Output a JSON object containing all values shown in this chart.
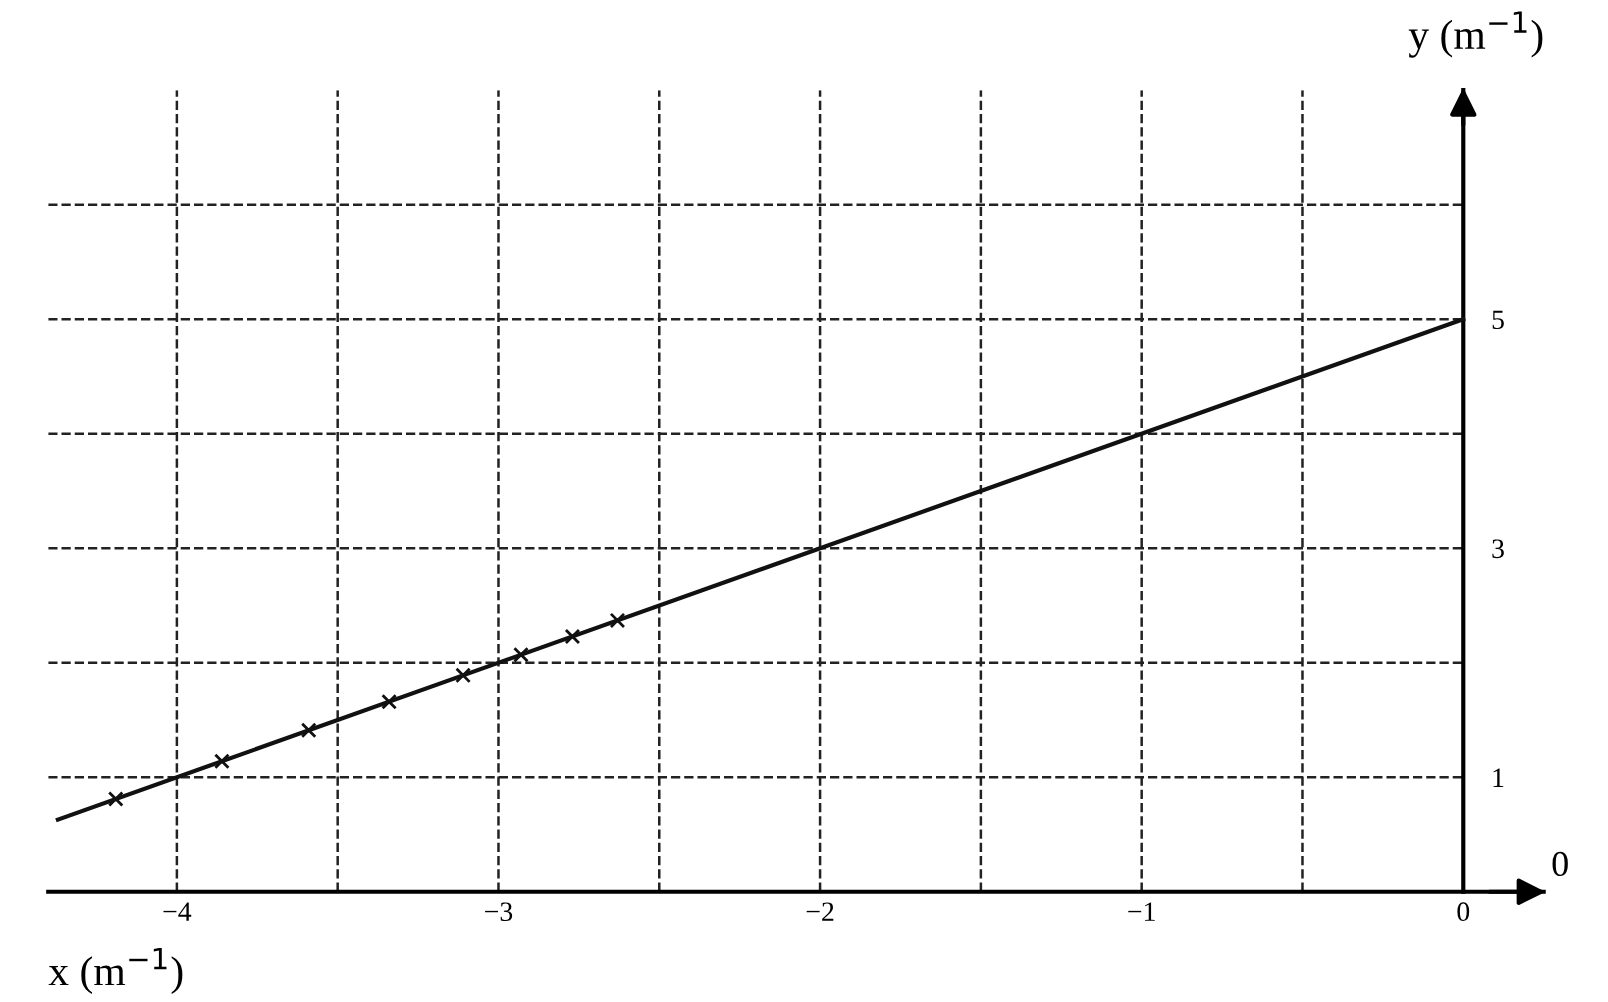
{
  "chart_data": {
    "type": "line",
    "xlabel": "x (m$^{−1}$)",
    "ylabel": "y (m$^{−1}$)",
    "series": [
      {
        "color": "#111111",
        "x": [
          -4.37,
          0
        ],
        "values": [
          0.63,
          5
        ],
        "marker": "none"
      },
      {
        "type": "scatter",
        "color": "#111111",
        "x": [
          -4.19,
          -3.86,
          -3.59,
          -3.34,
          -3.11,
          -2.93,
          -2.77,
          -2.63
        ],
        "values": [
          0.81,
          1.14,
          1.41,
          1.66,
          1.89,
          2.07,
          2.23,
          2.37
        ],
        "marker": "cross"
      }
    ],
    "xlim": [
      -4.4,
      0.25
    ],
    "ylim": [
      0,
      7
    ],
    "xticks": [
      -4,
      {
        "value": -3.5,
        "label": null
      },
      -3,
      {
        "value": -2.5,
        "label": null
      },
      -2,
      {
        "value": -1.5,
        "label": null
      },
      -1,
      {
        "value": -0.5,
        "label": null
      },
      0
    ],
    "yticks": [
      1,
      {
        "value": 2,
        "label": null
      },
      3,
      {
        "value": 4,
        "label": null
      },
      5,
      {
        "value": 6,
        "label": null
      }
    ],
    "annotations": [
      "0"
    ],
    "grid": true,
    "line_style": "solid",
    "legend": false
  }
}
